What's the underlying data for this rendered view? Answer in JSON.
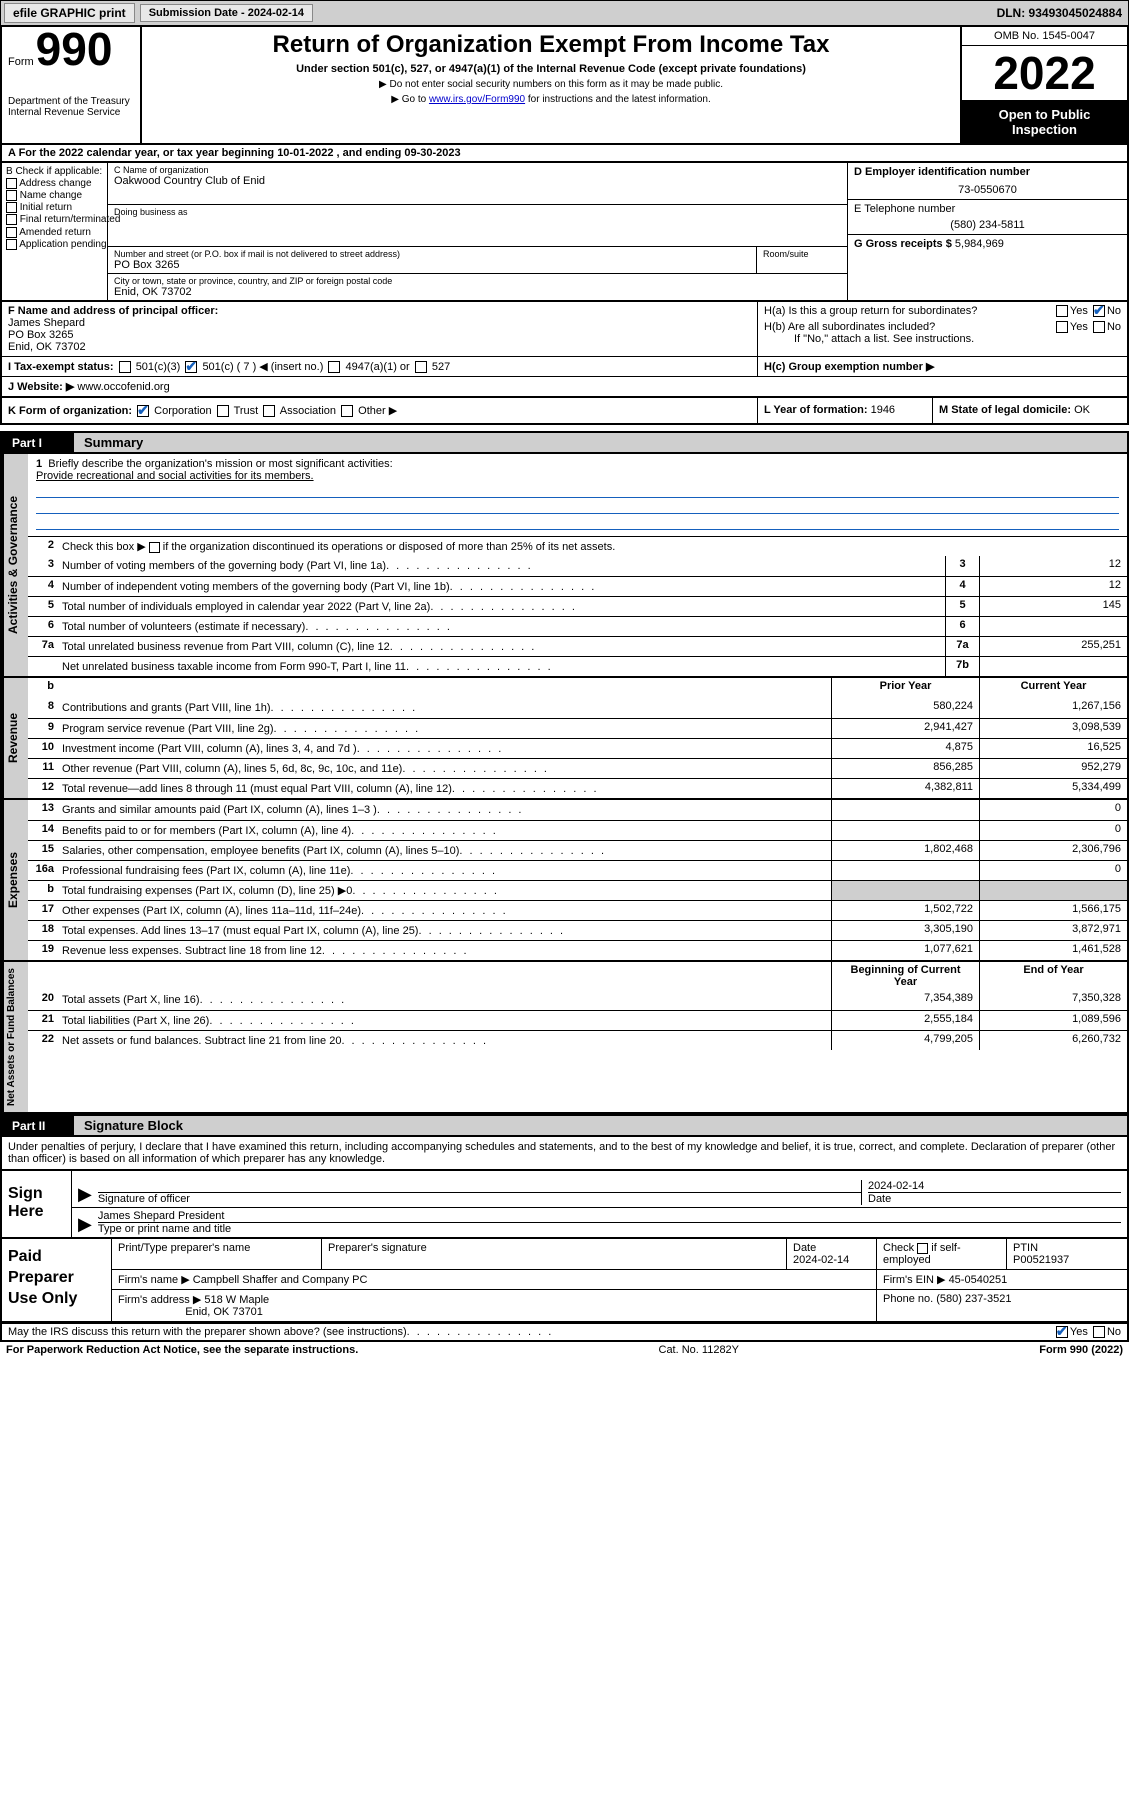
{
  "topbar": {
    "efile": "efile GRAPHIC print",
    "submission_label": "Submission Date - 2024-02-14",
    "dln": "DLN: 93493045024884"
  },
  "header": {
    "form_word": "Form",
    "form_number": "990",
    "dept": "Department of the Treasury\nInternal Revenue Service",
    "title": "Return of Organization Exempt From Income Tax",
    "subtitle": "Under section 501(c), 527, or 4947(a)(1) of the Internal Revenue Code (except private foundations)",
    "note1": "▶ Do not enter social security numbers on this form as it may be made public.",
    "note2_pre": "▶ Go to ",
    "note2_link": "www.irs.gov/Form990",
    "note2_post": " for instructions and the latest information.",
    "omb": "OMB No. 1545-0047",
    "year": "2022",
    "open": "Open to Public Inspection"
  },
  "taxyear": {
    "text": "A For the 2022 calendar year, or tax year beginning 10-01-2022    , and ending 09-30-2023"
  },
  "B": {
    "label": "B Check if applicable:",
    "opts": [
      "Address change",
      "Name change",
      "Initial return",
      "Final return/terminated",
      "Amended return",
      "Application pending"
    ]
  },
  "C": {
    "name_label": "C Name of organization",
    "name": "Oakwood Country Club of Enid",
    "dba_label": "Doing business as",
    "street_label": "Number and street (or P.O. box if mail is not delivered to street address)",
    "street": "PO Box 3265",
    "room_label": "Room/suite",
    "city_label": "City or town, state or province, country, and ZIP or foreign postal code",
    "city": "Enid, OK  73702"
  },
  "D": {
    "label": "D Employer identification number",
    "value": "73-0550670"
  },
  "E": {
    "label": "E Telephone number",
    "value": "(580) 234-5811"
  },
  "G": {
    "label": "G Gross receipts $",
    "value": "5,984,969"
  },
  "F": {
    "label": "F Name and address of principal officer:",
    "name": "James Shepard",
    "addr1": "PO Box 3265",
    "addr2": "Enid, OK  73702"
  },
  "H": {
    "a": "H(a)  Is this a group return for subordinates?",
    "b": "H(b)  Are all subordinates included?",
    "b_note": "If \"No,\" attach a list. See instructions.",
    "c": "H(c)  Group exemption number ▶"
  },
  "I": {
    "label": "I    Tax-exempt status:",
    "opts": [
      "501(c)(3)",
      "501(c) ( 7 ) ◀ (insert no.)",
      "4947(a)(1) or",
      "527"
    ]
  },
  "J": {
    "label": "J   Website: ▶",
    "value": "www.occofenid.org"
  },
  "K": {
    "label": "K Form of organization:",
    "opts": [
      "Corporation",
      "Trust",
      "Association",
      "Other ▶"
    ]
  },
  "L": {
    "label": "L Year of formation:",
    "value": "1946"
  },
  "M": {
    "label": "M State of legal domicile:",
    "value": "OK"
  },
  "part1": {
    "label": "Part I",
    "title": "Summary"
  },
  "summary": {
    "q1": "Briefly describe the organization's mission or most significant activities:",
    "q1v": "Provide recreational and social activities for its members.",
    "q2": "Check this box ▶      if the organization discontinued its operations or disposed of more than 25% of its net assets.",
    "rows_single": [
      {
        "n": "3",
        "d": "Number of voting members of the governing body (Part VI, line 1a)",
        "c": "3",
        "v": "12"
      },
      {
        "n": "4",
        "d": "Number of independent voting members of the governing body (Part VI, line 1b)",
        "c": "4",
        "v": "12"
      },
      {
        "n": "5",
        "d": "Total number of individuals employed in calendar year 2022 (Part V, line 2a)",
        "c": "5",
        "v": "145"
      },
      {
        "n": "6",
        "d": "Total number of volunteers (estimate if necessary)",
        "c": "6",
        "v": ""
      },
      {
        "n": "7a",
        "d": "Total unrelated business revenue from Part VIII, column (C), line 12",
        "c": "7a",
        "v": "255,251"
      },
      {
        "n": "",
        "d": "Net unrelated business taxable income from Form 990-T, Part I, line 11",
        "c": "7b",
        "v": ""
      }
    ],
    "col_headers": {
      "b": "b",
      "prior": "Prior Year",
      "current": "Current Year"
    },
    "revenue": [
      {
        "n": "8",
        "d": "Contributions and grants (Part VIII, line 1h)",
        "p": "580,224",
        "c": "1,267,156"
      },
      {
        "n": "9",
        "d": "Program service revenue (Part VIII, line 2g)",
        "p": "2,941,427",
        "c": "3,098,539"
      },
      {
        "n": "10",
        "d": "Investment income (Part VIII, column (A), lines 3, 4, and 7d )",
        "p": "4,875",
        "c": "16,525"
      },
      {
        "n": "11",
        "d": "Other revenue (Part VIII, column (A), lines 5, 6d, 8c, 9c, 10c, and 11e)",
        "p": "856,285",
        "c": "952,279"
      },
      {
        "n": "12",
        "d": "Total revenue—add lines 8 through 11 (must equal Part VIII, column (A), line 12)",
        "p": "4,382,811",
        "c": "5,334,499"
      }
    ],
    "expenses": [
      {
        "n": "13",
        "d": "Grants and similar amounts paid (Part IX, column (A), lines 1–3 )",
        "p": "",
        "c": "0"
      },
      {
        "n": "14",
        "d": "Benefits paid to or for members (Part IX, column (A), line 4)",
        "p": "",
        "c": "0"
      },
      {
        "n": "15",
        "d": "Salaries, other compensation, employee benefits (Part IX, column (A), lines 5–10)",
        "p": "1,802,468",
        "c": "2,306,796"
      },
      {
        "n": "16a",
        "d": "Professional fundraising fees (Part IX, column (A), line 11e)",
        "p": "",
        "c": "0"
      },
      {
        "n": "b",
        "d": "Total fundraising expenses (Part IX, column (D), line 25) ▶0",
        "p": "GREY",
        "c": "GREY"
      },
      {
        "n": "17",
        "d": "Other expenses (Part IX, column (A), lines 11a–11d, 11f–24e)",
        "p": "1,502,722",
        "c": "1,566,175"
      },
      {
        "n": "18",
        "d": "Total expenses. Add lines 13–17 (must equal Part IX, column (A), line 25)",
        "p": "3,305,190",
        "c": "3,872,971"
      },
      {
        "n": "19",
        "d": "Revenue less expenses. Subtract line 18 from line 12",
        "p": "1,077,621",
        "c": "1,461,528"
      }
    ],
    "net_headers": {
      "b": "Beginning of Current Year",
      "e": "End of Year"
    },
    "net": [
      {
        "n": "20",
        "d": "Total assets (Part X, line 16)",
        "p": "7,354,389",
        "c": "7,350,328"
      },
      {
        "n": "21",
        "d": "Total liabilities (Part X, line 26)",
        "p": "2,555,184",
        "c": "1,089,596"
      },
      {
        "n": "22",
        "d": "Net assets or fund balances. Subtract line 21 from line 20",
        "p": "4,799,205",
        "c": "6,260,732"
      }
    ],
    "vlabels": {
      "ag": "Activities & Governance",
      "rev": "Revenue",
      "exp": "Expenses",
      "net": "Net Assets or Fund Balances"
    }
  },
  "part2": {
    "label": "Part II",
    "title": "Signature Block"
  },
  "sig": {
    "decl": "Under penalties of perjury, I declare that I have examined this return, including accompanying schedules and statements, and to the best of my knowledge and belief, it is true, correct, and complete. Declaration of preparer (other than officer) is based on all information of which preparer has any knowledge.",
    "signhere": "Sign Here",
    "sig_of_officer": "Signature of officer",
    "sig_date": "2024-02-14",
    "date_label": "Date",
    "officer_name": "James Shepard President",
    "type_name": "Type or print name and title",
    "paid": "Paid Preparer Use Only",
    "pt_name_label": "Print/Type preparer's name",
    "prep_sig_label": "Preparer's signature",
    "prep_date_label": "Date",
    "prep_date": "2024-02-14",
    "check_self": "Check        if self-employed",
    "ptin_label": "PTIN",
    "ptin": "P00521937",
    "firm_name_label": "Firm's name    ▶",
    "firm_name": "Campbell Shaffer and Company PC",
    "firm_ein_label": "Firm's EIN ▶",
    "firm_ein": "45-0540251",
    "firm_addr_label": "Firm's address ▶",
    "firm_addr1": "518 W Maple",
    "firm_addr2": "Enid, OK  73701",
    "phone_label": "Phone no.",
    "phone": "(580) 237-3521"
  },
  "footer": {
    "discuss": "May the IRS discuss this return with the preparer shown above? (see instructions)",
    "paperwork": "For Paperwork Reduction Act Notice, see the separate instructions.",
    "cat": "Cat. No. 11282Y",
    "formno": "Form 990 (2022)"
  },
  "colors": {
    "grey": "#cfcfcf",
    "link": "#0000cc",
    "check": "#1560bd"
  }
}
